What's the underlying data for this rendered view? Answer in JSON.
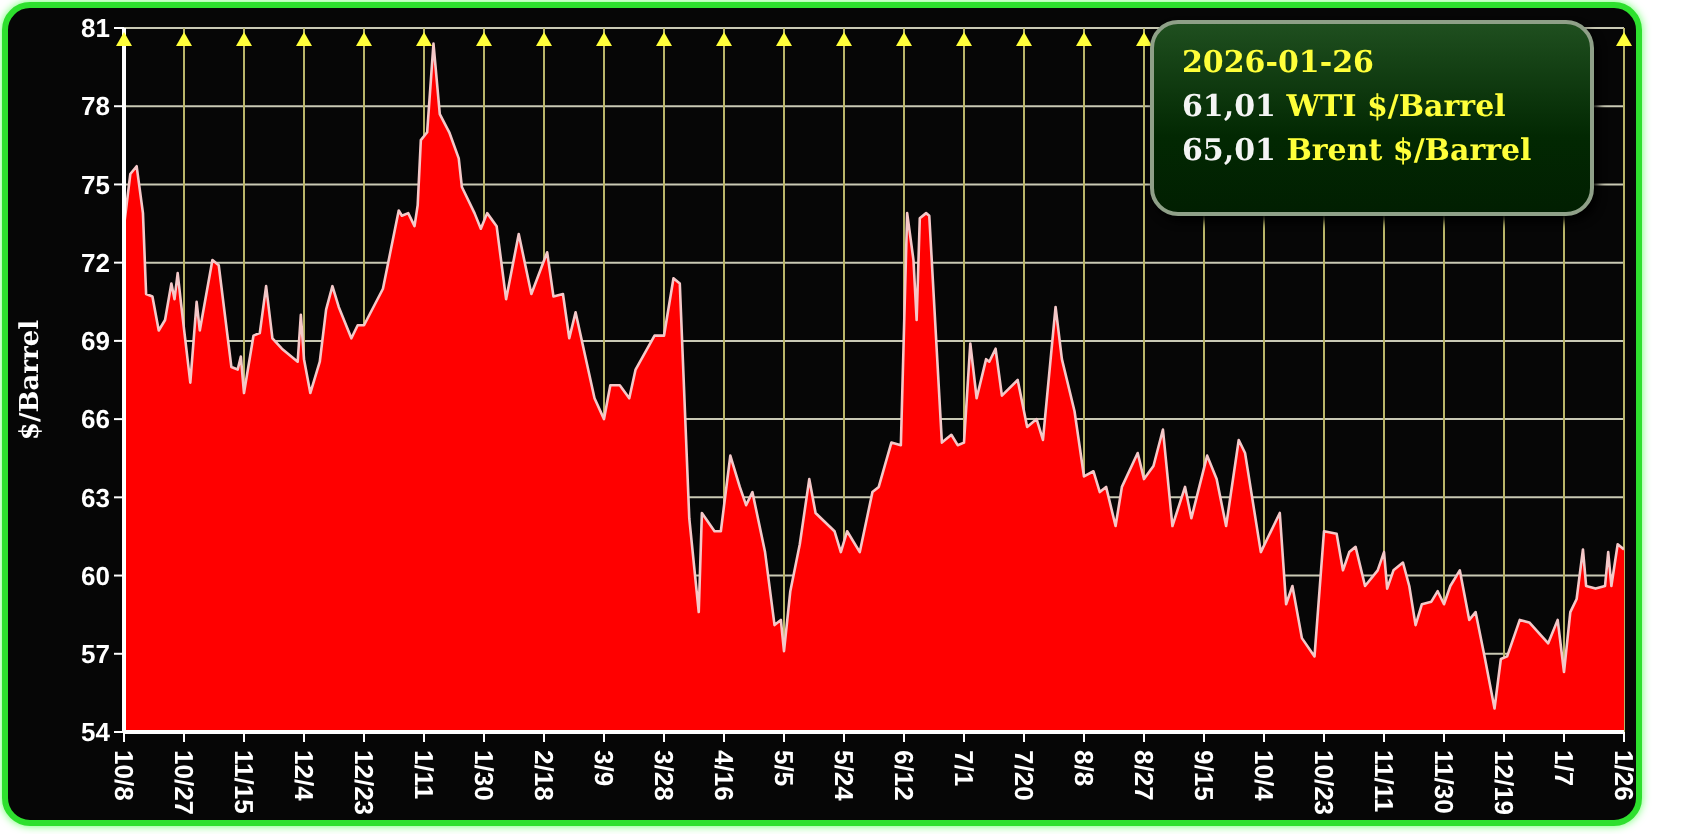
{
  "chart_data": {
    "type": "area",
    "ylabel": "$/Barrel",
    "color": "#ff0000",
    "x": [
      "2024-10-08",
      "2024-10-10",
      "2024-10-12",
      "2024-10-14",
      "2024-10-15",
      "2024-10-17",
      "2024-10-19",
      "2024-10-21",
      "2024-10-23",
      "2024-10-24",
      "2024-10-25",
      "2024-10-26",
      "2024-10-29",
      "2024-10-31",
      "2024-11-01",
      "2024-11-05",
      "2024-11-07",
      "2024-11-11",
      "2024-11-13",
      "2024-11-14",
      "2024-11-15",
      "2024-11-18",
      "2024-11-20",
      "2024-11-22",
      "2024-11-24",
      "2024-11-27",
      "2024-12-02",
      "2024-12-03",
      "2024-12-04",
      "2024-12-06",
      "2024-12-09",
      "2024-12-11",
      "2024-12-13",
      "2024-12-15",
      "2024-12-19",
      "2024-12-21",
      "2024-12-23",
      "2024-12-29",
      "2025-01-03",
      "2025-01-04",
      "2025-01-06",
      "2025-01-08",
      "2025-01-09",
      "2025-01-10",
      "2025-01-12",
      "2025-01-14",
      "2025-01-16",
      "2025-01-19",
      "2025-01-22",
      "2025-01-23",
      "2025-01-27",
      "2025-01-29",
      "2025-01-31",
      "2025-02-03",
      "2025-02-06",
      "2025-02-10",
      "2025-02-14",
      "2025-02-19",
      "2025-02-21",
      "2025-02-24",
      "2025-02-26",
      "2025-02-28",
      "2025-03-06",
      "2025-03-09",
      "2025-03-11",
      "2025-03-14",
      "2025-03-17",
      "2025-03-19",
      "2025-03-25",
      "2025-03-28",
      "2025-03-31",
      "2025-04-02",
      "2025-04-05",
      "2025-04-08",
      "2025-04-09",
      "2025-04-13",
      "2025-04-15",
      "2025-04-18",
      "2025-04-21",
      "2025-04-23",
      "2025-04-25",
      "2025-04-29",
      "2025-05-02",
      "2025-05-04",
      "2025-05-05",
      "2025-05-07",
      "2025-05-10",
      "2025-05-13",
      "2025-05-15",
      "2025-05-21",
      "2025-05-23",
      "2025-05-25",
      "2025-05-29",
      "2025-06-02",
      "2025-06-04",
      "2025-06-08",
      "2025-06-11",
      "2025-06-13",
      "2025-06-15",
      "2025-06-16",
      "2025-06-17",
      "2025-06-19",
      "2025-06-20",
      "2025-06-24",
      "2025-06-27",
      "2025-06-29",
      "2025-07-01",
      "2025-07-03",
      "2025-07-05",
      "2025-07-08",
      "2025-07-09",
      "2025-07-11",
      "2025-07-13",
      "2025-07-18",
      "2025-07-21",
      "2025-07-24",
      "2025-07-26",
      "2025-07-30",
      "2025-08-01",
      "2025-08-05",
      "2025-08-08",
      "2025-08-11",
      "2025-08-13",
      "2025-08-15",
      "2025-08-18",
      "2025-08-20",
      "2025-08-25",
      "2025-08-27",
      "2025-08-30",
      "2025-09-02",
      "2025-09-05",
      "2025-09-09",
      "2025-09-11",
      "2025-09-16",
      "2025-09-19",
      "2025-09-22",
      "2025-09-26",
      "2025-09-28",
      "2025-10-03",
      "2025-10-05",
      "2025-10-09",
      "2025-10-11",
      "2025-10-13",
      "2025-10-16",
      "2025-10-20",
      "2025-10-23",
      "2025-10-27",
      "2025-10-29",
      "2025-10-31",
      "2025-11-02",
      "2025-11-05",
      "2025-11-09",
      "2025-11-11",
      "2025-11-12",
      "2025-11-14",
      "2025-11-17",
      "2025-11-19",
      "2025-11-21",
      "2025-11-23",
      "2025-11-26",
      "2025-11-28",
      "2025-11-30",
      "2025-12-02",
      "2025-12-05",
      "2025-12-08",
      "2025-12-10",
      "2025-12-13",
      "2025-12-16",
      "2025-12-18",
      "2025-12-20",
      "2025-12-24",
      "2025-12-27",
      "2025-12-30",
      "2026-01-02",
      "2026-01-05",
      "2026-01-07",
      "2026-01-09",
      "2026-01-11",
      "2026-01-13",
      "2026-01-14",
      "2026-01-17",
      "2026-01-20",
      "2026-01-21",
      "2026-01-22",
      "2026-01-24",
      "2026-01-26"
    ],
    "values": [
      73.4,
      75.4,
      75.7,
      73.9,
      70.8,
      70.7,
      69.4,
      69.8,
      71.2,
      70.6,
      71.6,
      70.5,
      67.4,
      70.5,
      69.4,
      72.1,
      71.9,
      68.0,
      67.9,
      68.4,
      67.0,
      69.2,
      69.3,
      71.1,
      69.1,
      68.7,
      68.2,
      70.0,
      68.3,
      67.0,
      68.2,
      70.2,
      71.1,
      70.3,
      69.1,
      69.6,
      69.6,
      71.0,
      74.0,
      73.8,
      73.9,
      73.4,
      74.2,
      76.7,
      77.0,
      80.4,
      77.7,
      77.0,
      76.0,
      74.9,
      73.9,
      73.3,
      73.9,
      73.4,
      70.6,
      73.1,
      70.8,
      72.4,
      70.7,
      70.8,
      69.1,
      70.1,
      66.8,
      66.0,
      67.3,
      67.3,
      66.8,
      67.9,
      69.2,
      69.2,
      71.4,
      71.2,
      62.2,
      58.6,
      62.4,
      61.7,
      61.7,
      64.6,
      63.4,
      62.7,
      63.2,
      60.9,
      58.1,
      58.3,
      57.1,
      59.4,
      61.2,
      63.7,
      62.4,
      61.7,
      60.9,
      61.7,
      60.9,
      63.2,
      63.4,
      65.1,
      65.0,
      73.9,
      72.1,
      69.8,
      73.7,
      73.9,
      73.8,
      65.1,
      65.4,
      65.0,
      65.1,
      68.9,
      66.8,
      68.3,
      68.2,
      68.7,
      66.9,
      67.5,
      65.7,
      66.0,
      65.2,
      70.3,
      68.3,
      66.3,
      63.8,
      64.0,
      63.2,
      63.4,
      61.9,
      63.4,
      64.7,
      63.7,
      64.2,
      65.6,
      61.9,
      63.4,
      62.2,
      64.6,
      63.7,
      61.9,
      65.2,
      64.7,
      60.9,
      61.4,
      62.4,
      58.9,
      59.6,
      57.6,
      56.9,
      61.7,
      61.6,
      60.2,
      60.9,
      61.1,
      59.6,
      60.2,
      60.9,
      59.5,
      60.2,
      60.5,
      59.6,
      58.1,
      58.9,
      59.0,
      59.4,
      58.9,
      59.6,
      60.2,
      58.3,
      58.6,
      56.8,
      54.9,
      56.8,
      56.9,
      58.3,
      58.2,
      57.8,
      57.4,
      58.3,
      56.3,
      58.6,
      59.1,
      61.0,
      59.6,
      59.5,
      59.6,
      60.9,
      59.6,
      61.2,
      61.0
    ],
    "xlim": [
      "2024-10-08",
      "2026-01-26"
    ],
    "xticks": [
      {
        "value": "2024-10-08",
        "label": "10/8"
      },
      {
        "value": "2024-10-27",
        "label": "10/27"
      },
      {
        "value": "2024-11-15",
        "label": "11/15"
      },
      {
        "value": "2024-12-04",
        "label": "12/4"
      },
      {
        "value": "2024-12-23",
        "label": "12/23"
      },
      {
        "value": "2025-01-11",
        "label": "1/11"
      },
      {
        "value": "2025-01-30",
        "label": "1/30"
      },
      {
        "value": "2025-02-18",
        "label": "2/18"
      },
      {
        "value": "2025-03-09",
        "label": "3/9"
      },
      {
        "value": "2025-03-28",
        "label": "3/28"
      },
      {
        "value": "2025-04-16",
        "label": "4/16"
      },
      {
        "value": "2025-05-05",
        "label": "5/5"
      },
      {
        "value": "2025-05-24",
        "label": "5/24"
      },
      {
        "value": "2025-06-12",
        "label": "6/12"
      },
      {
        "value": "2025-07-01",
        "label": "7/1"
      },
      {
        "value": "2025-07-20",
        "label": "7/20"
      },
      {
        "value": "2025-08-08",
        "label": "8/8"
      },
      {
        "value": "2025-08-27",
        "label": "8/27"
      },
      {
        "value": "2025-09-15",
        "label": "9/15"
      },
      {
        "value": "2025-10-04",
        "label": "10/4"
      },
      {
        "value": "2025-10-23",
        "label": "10/23"
      },
      {
        "value": "2025-11-11",
        "label": "11/11"
      },
      {
        "value": "2025-11-30",
        "label": "11/30"
      },
      {
        "value": "2025-12-19",
        "label": "12/19"
      },
      {
        "value": "2026-01-07",
        "label": "1/7"
      },
      {
        "value": "2026-01-26",
        "label": "1/26"
      }
    ],
    "ylim": [
      54,
      81
    ],
    "yticks": [
      54,
      57,
      60,
      63,
      66,
      69,
      72,
      75,
      78,
      81
    ],
    "grid": true,
    "annotations": [
      "2026-01-26",
      "61,01 WTI $/Barrel",
      "65,01 Brent $/Barrel"
    ]
  }
}
